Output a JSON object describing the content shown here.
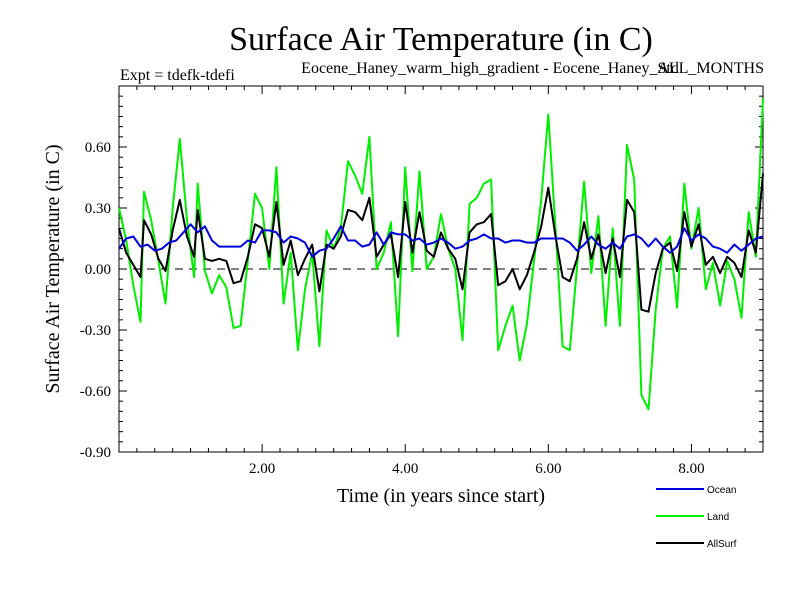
{
  "chart_data": {
    "type": "line",
    "title": "Surface Air Temperature (in C)",
    "subtitle_left": "Expt = tdefk-tdefi",
    "subtitle_center": "Eocene_Haney_warm_high_gradient - Eocene_Haney_Std",
    "subtitle_right": "ALL_MONTHS",
    "xlabel": "Time (in years since start)",
    "ylabel": "Surface Air Temperature (in C)",
    "xlim": [
      0,
      9
    ],
    "ylim": [
      -0.9,
      0.9
    ],
    "x_ticks": [
      2,
      4,
      6,
      8
    ],
    "x_tick_labels": [
      "2.00",
      "4.00",
      "6.00",
      "8.00"
    ],
    "y_ticks": [
      -0.9,
      -0.6,
      -0.3,
      0,
      0.3,
      0.6
    ],
    "y_tick_labels": [
      "-0.90",
      "-0.60",
      "-0.30",
      "0.00",
      "0.30",
      "0.60"
    ],
    "zero_line": "dashed",
    "legend_position": "bottom-right",
    "series": [
      {
        "name": "Ocean",
        "color": "#0000dd",
        "points": [
          [
            0.0,
            0.1
          ],
          [
            0.1,
            0.15
          ],
          [
            0.2,
            0.16
          ],
          [
            0.3,
            0.11
          ],
          [
            0.4,
            0.12
          ],
          [
            0.5,
            0.09
          ],
          [
            0.6,
            0.1
          ],
          [
            0.7,
            0.13
          ],
          [
            0.8,
            0.14
          ],
          [
            0.9,
            0.18
          ],
          [
            1.0,
            0.22
          ],
          [
            1.1,
            0.18
          ],
          [
            1.2,
            0.21
          ],
          [
            1.3,
            0.14
          ],
          [
            1.4,
            0.11
          ],
          [
            1.5,
            0.11
          ],
          [
            1.6,
            0.11
          ],
          [
            1.7,
            0.11
          ],
          [
            1.8,
            0.14
          ],
          [
            1.9,
            0.13
          ],
          [
            2.0,
            0.19
          ],
          [
            2.1,
            0.19
          ],
          [
            2.2,
            0.18
          ],
          [
            2.3,
            0.13
          ],
          [
            2.4,
            0.16
          ],
          [
            2.5,
            0.15
          ],
          [
            2.6,
            0.13
          ],
          [
            2.7,
            0.06
          ],
          [
            2.8,
            0.09
          ],
          [
            2.9,
            0.1
          ],
          [
            3.0,
            0.15
          ],
          [
            3.1,
            0.21
          ],
          [
            3.2,
            0.14
          ],
          [
            3.3,
            0.14
          ],
          [
            3.4,
            0.11
          ],
          [
            3.5,
            0.12
          ],
          [
            3.6,
            0.18
          ],
          [
            3.7,
            0.12
          ],
          [
            3.8,
            0.18
          ],
          [
            3.9,
            0.17
          ],
          [
            4.0,
            0.17
          ],
          [
            4.1,
            0.14
          ],
          [
            4.2,
            0.15
          ],
          [
            4.3,
            0.12
          ],
          [
            4.4,
            0.13
          ],
          [
            4.5,
            0.15
          ],
          [
            4.6,
            0.13
          ],
          [
            4.7,
            0.1
          ],
          [
            4.8,
            0.11
          ],
          [
            4.9,
            0.14
          ],
          [
            5.0,
            0.15
          ],
          [
            5.1,
            0.17
          ],
          [
            5.2,
            0.15
          ],
          [
            5.3,
            0.15
          ],
          [
            5.4,
            0.13
          ],
          [
            5.5,
            0.14
          ],
          [
            5.6,
            0.14
          ],
          [
            5.7,
            0.13
          ],
          [
            5.8,
            0.13
          ],
          [
            5.9,
            0.15
          ],
          [
            6.0,
            0.15
          ],
          [
            6.1,
            0.15
          ],
          [
            6.2,
            0.15
          ],
          [
            6.3,
            0.13
          ],
          [
            6.4,
            0.09
          ],
          [
            6.5,
            0.12
          ],
          [
            6.6,
            0.16
          ],
          [
            6.7,
            0.12
          ],
          [
            6.8,
            0.1
          ],
          [
            6.9,
            0.13
          ],
          [
            7.0,
            0.1
          ],
          [
            7.1,
            0.16
          ],
          [
            7.2,
            0.17
          ],
          [
            7.3,
            0.15
          ],
          [
            7.4,
            0.11
          ],
          [
            7.5,
            0.15
          ],
          [
            7.6,
            0.11
          ],
          [
            7.7,
            0.08
          ],
          [
            7.8,
            0.11
          ],
          [
            7.9,
            0.2
          ],
          [
            8.0,
            0.14
          ],
          [
            8.1,
            0.17
          ],
          [
            8.2,
            0.15
          ],
          [
            8.3,
            0.11
          ],
          [
            8.4,
            0.1
          ],
          [
            8.5,
            0.08
          ],
          [
            8.6,
            0.12
          ],
          [
            8.7,
            0.09
          ],
          [
            8.8,
            0.12
          ],
          [
            8.9,
            0.15
          ],
          [
            9.0,
            0.16
          ]
        ]
      },
      {
        "name": "Land",
        "color": "#00ee00",
        "points": [
          [
            0.0,
            0.3
          ],
          [
            0.1,
            0.14
          ],
          [
            0.2,
            -0.08
          ],
          [
            0.3,
            -0.26
          ],
          [
            0.35,
            0.38
          ],
          [
            0.45,
            0.24
          ],
          [
            0.55,
            0.04
          ],
          [
            0.65,
            -0.17
          ],
          [
            0.75,
            0.3
          ],
          [
            0.85,
            0.64
          ],
          [
            0.95,
            0.24
          ],
          [
            1.05,
            -0.04
          ],
          [
            1.1,
            0.42
          ],
          [
            1.2,
            -0.01
          ],
          [
            1.3,
            -0.12
          ],
          [
            1.4,
            -0.03
          ],
          [
            1.5,
            -0.09
          ],
          [
            1.6,
            -0.29
          ],
          [
            1.7,
            -0.28
          ],
          [
            1.8,
            0.04
          ],
          [
            1.9,
            0.37
          ],
          [
            2.0,
            0.3
          ],
          [
            2.1,
            0.0
          ],
          [
            2.2,
            0.5
          ],
          [
            2.3,
            -0.17
          ],
          [
            2.4,
            0.08
          ],
          [
            2.5,
            -0.4
          ],
          [
            2.6,
            -0.1
          ],
          [
            2.7,
            0.08
          ],
          [
            2.8,
            -0.38
          ],
          [
            2.9,
            0.19
          ],
          [
            3.0,
            0.1
          ],
          [
            3.1,
            0.2
          ],
          [
            3.2,
            0.53
          ],
          [
            3.3,
            0.46
          ],
          [
            3.4,
            0.37
          ],
          [
            3.5,
            0.65
          ],
          [
            3.6,
            0.0
          ],
          [
            3.7,
            0.08
          ],
          [
            3.8,
            0.23
          ],
          [
            3.9,
            -0.33
          ],
          [
            4.0,
            0.5
          ],
          [
            4.1,
            -0.01
          ],
          [
            4.2,
            0.48
          ],
          [
            4.3,
            0.0
          ],
          [
            4.4,
            0.06
          ],
          [
            4.5,
            0.27
          ],
          [
            4.6,
            0.1
          ],
          [
            4.7,
            0.0
          ],
          [
            4.8,
            -0.35
          ],
          [
            4.9,
            0.32
          ],
          [
            5.0,
            0.35
          ],
          [
            5.1,
            0.42
          ],
          [
            5.2,
            0.44
          ],
          [
            5.3,
            -0.4
          ],
          [
            5.4,
            -0.28
          ],
          [
            5.5,
            -0.18
          ],
          [
            5.6,
            -0.45
          ],
          [
            5.7,
            -0.27
          ],
          [
            5.8,
            0.04
          ],
          [
            5.9,
            0.34
          ],
          [
            6.0,
            0.76
          ],
          [
            6.1,
            0.2
          ],
          [
            6.2,
            -0.38
          ],
          [
            6.3,
            -0.4
          ],
          [
            6.4,
            0.01
          ],
          [
            6.5,
            0.43
          ],
          [
            6.6,
            -0.02
          ],
          [
            6.7,
            0.26
          ],
          [
            6.8,
            -0.28
          ],
          [
            6.9,
            0.2
          ],
          [
            7.0,
            -0.28
          ],
          [
            7.1,
            0.61
          ],
          [
            7.2,
            0.44
          ],
          [
            7.3,
            -0.62
          ],
          [
            7.4,
            -0.69
          ],
          [
            7.5,
            -0.2
          ],
          [
            7.6,
            0.1
          ],
          [
            7.7,
            0.16
          ],
          [
            7.8,
            -0.19
          ],
          [
            7.9,
            0.42
          ],
          [
            8.0,
            0.1
          ],
          [
            8.1,
            0.3
          ],
          [
            8.2,
            -0.1
          ],
          [
            8.3,
            0.03
          ],
          [
            8.4,
            -0.18
          ],
          [
            8.5,
            0.04
          ],
          [
            8.6,
            -0.05
          ],
          [
            8.7,
            -0.24
          ],
          [
            8.8,
            0.28
          ],
          [
            8.9,
            0.06
          ],
          [
            9.0,
            0.84
          ]
        ]
      },
      {
        "name": "AllSurf",
        "color": "#000000",
        "points": [
          [
            0.0,
            0.2
          ],
          [
            0.1,
            0.08
          ],
          [
            0.2,
            0.02
          ],
          [
            0.3,
            -0.04
          ],
          [
            0.35,
            0.24
          ],
          [
            0.45,
            0.17
          ],
          [
            0.55,
            0.05
          ],
          [
            0.65,
            -0.01
          ],
          [
            0.75,
            0.19
          ],
          [
            0.85,
            0.34
          ],
          [
            0.95,
            0.16
          ],
          [
            1.05,
            0.06
          ],
          [
            1.1,
            0.29
          ],
          [
            1.2,
            0.05
          ],
          [
            1.3,
            0.04
          ],
          [
            1.4,
            0.05
          ],
          [
            1.5,
            0.04
          ],
          [
            1.6,
            -0.07
          ],
          [
            1.7,
            -0.06
          ],
          [
            1.8,
            0.06
          ],
          [
            1.9,
            0.22
          ],
          [
            2.0,
            0.2
          ],
          [
            2.1,
            0.06
          ],
          [
            2.2,
            0.33
          ],
          [
            2.3,
            0.02
          ],
          [
            2.4,
            0.14
          ],
          [
            2.5,
            -0.03
          ],
          [
            2.6,
            0.05
          ],
          [
            2.7,
            0.12
          ],
          [
            2.8,
            -0.11
          ],
          [
            2.9,
            0.12
          ],
          [
            3.0,
            0.1
          ],
          [
            3.1,
            0.16
          ],
          [
            3.2,
            0.29
          ],
          [
            3.3,
            0.28
          ],
          [
            3.4,
            0.24
          ],
          [
            3.5,
            0.35
          ],
          [
            3.6,
            0.06
          ],
          [
            3.7,
            0.12
          ],
          [
            3.8,
            0.17
          ],
          [
            3.9,
            -0.04
          ],
          [
            4.0,
            0.33
          ],
          [
            4.1,
            0.08
          ],
          [
            4.2,
            0.28
          ],
          [
            4.3,
            0.09
          ],
          [
            4.4,
            0.06
          ],
          [
            4.5,
            0.18
          ],
          [
            4.6,
            0.1
          ],
          [
            4.7,
            0.05
          ],
          [
            4.8,
            -0.1
          ],
          [
            4.9,
            0.18
          ],
          [
            5.0,
            0.22
          ],
          [
            5.1,
            0.23
          ],
          [
            5.2,
            0.27
          ],
          [
            5.3,
            -0.08
          ],
          [
            5.4,
            -0.06
          ],
          [
            5.5,
            0.0
          ],
          [
            5.6,
            -0.1
          ],
          [
            5.7,
            -0.03
          ],
          [
            5.8,
            0.08
          ],
          [
            5.9,
            0.21
          ],
          [
            6.0,
            0.4
          ],
          [
            6.1,
            0.16
          ],
          [
            6.2,
            -0.04
          ],
          [
            6.3,
            -0.06
          ],
          [
            6.4,
            0.05
          ],
          [
            6.5,
            0.23
          ],
          [
            6.6,
            0.05
          ],
          [
            6.7,
            0.17
          ],
          [
            6.8,
            -0.02
          ],
          [
            6.9,
            0.15
          ],
          [
            7.0,
            -0.04
          ],
          [
            7.1,
            0.34
          ],
          [
            7.2,
            0.28
          ],
          [
            7.3,
            -0.2
          ],
          [
            7.4,
            -0.21
          ],
          [
            7.5,
            -0.02
          ],
          [
            7.6,
            0.1
          ],
          [
            7.7,
            0.13
          ],
          [
            7.8,
            -0.01
          ],
          [
            7.9,
            0.28
          ],
          [
            8.0,
            0.11
          ],
          [
            8.1,
            0.22
          ],
          [
            8.2,
            0.02
          ],
          [
            8.3,
            0.06
          ],
          [
            8.4,
            -0.02
          ],
          [
            8.5,
            0.06
          ],
          [
            8.6,
            0.03
          ],
          [
            8.7,
            -0.04
          ],
          [
            8.8,
            0.19
          ],
          [
            8.9,
            0.08
          ],
          [
            9.0,
            0.47
          ]
        ]
      }
    ]
  }
}
